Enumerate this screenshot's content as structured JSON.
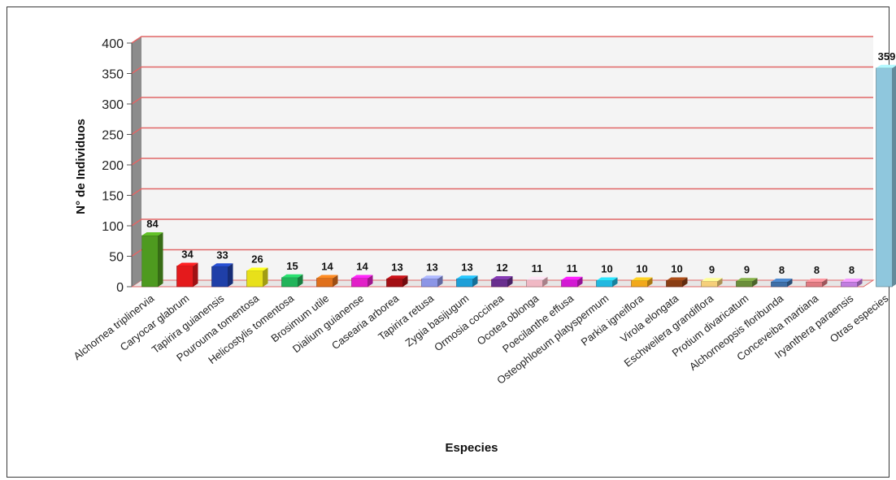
{
  "chart_data": {
    "type": "bar",
    "xlabel": "Especies",
    "ylabel": "N° de Individuos",
    "ylim": [
      0,
      400
    ],
    "yticks": [
      0,
      50,
      100,
      150,
      200,
      250,
      300,
      350,
      400
    ],
    "grid": true,
    "grid_color": "#e06666",
    "categories": [
      "Alchornea triplinervia",
      "Caryocar glabrum",
      "Tapirira guianensis",
      "Pourouma tomentosa",
      "Helicostylis tomentosa",
      "Brosimum utile",
      "Dialium guianense",
      "Casearia arborea",
      "Tapirira retusa",
      "Zygia basijugum",
      "Ormosia coccinea",
      "Ocotea oblonga",
      "Poecilanthe effusa",
      "Osteophloeum platyspermum",
      "Parkia igneiflora",
      "Virola elongata",
      "Eschweilera grandiflora",
      "Protium divaricatum",
      "Alchorneopsis floribunda",
      "Conceveiba martiana",
      "Iryanthera paraensis",
      "Otras especies"
    ],
    "values": [
      84,
      34,
      33,
      26,
      15,
      14,
      14,
      13,
      13,
      13,
      12,
      11,
      11,
      10,
      10,
      10,
      9,
      9,
      8,
      8,
      8,
      359
    ],
    "colors": [
      "#4e9a1f",
      "#e41a1c",
      "#1f3fa8",
      "#e8e01a",
      "#22b45a",
      "#e0701c",
      "#e21fc8",
      "#a30f14",
      "#8c95e6",
      "#1e9fd8",
      "#6a2f8f",
      "#f0b8c4",
      "#d319d3",
      "#22b8e0",
      "#f2a81c",
      "#8a3e14",
      "#f6cf7a",
      "#6b8e3a",
      "#3f6fa8",
      "#e07b82",
      "#c27de0",
      "#8fc7dd"
    ]
  }
}
